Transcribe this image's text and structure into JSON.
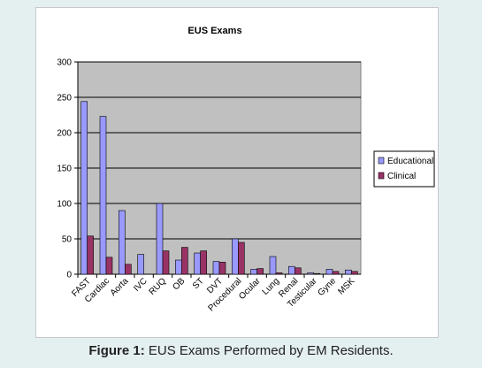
{
  "figure": {
    "caption_label": "Figure 1:",
    "caption_text": " EUS Exams Performed by EM Residents."
  },
  "chart_data": {
    "type": "bar",
    "title": "EUS Exams",
    "xlabel": "",
    "ylabel": "",
    "ylim": [
      0,
      300
    ],
    "yticks": [
      0,
      50,
      100,
      150,
      200,
      250,
      300
    ],
    "grid": true,
    "legend_position": "right",
    "categories": [
      "FAST",
      "Cardiac",
      "Aorta",
      "IVC",
      "RUQ",
      "OB",
      "ST",
      "DVT",
      "Procedural",
      "Ocular",
      "Lung",
      "Renal",
      "Testicular",
      "Gyne",
      "MSK"
    ],
    "series": [
      {
        "name": "Educational",
        "color": "#9999ff",
        "values": [
          244,
          223,
          90,
          28,
          100,
          20,
          30,
          18,
          50,
          7,
          25,
          11,
          2,
          7,
          6
        ]
      },
      {
        "name": "Clinical",
        "color": "#993366",
        "values": [
          54,
          24,
          14,
          0,
          33,
          38,
          33,
          17,
          45,
          8,
          2,
          9,
          1,
          4,
          4
        ]
      }
    ],
    "plot_background": "#c0c0c0"
  }
}
